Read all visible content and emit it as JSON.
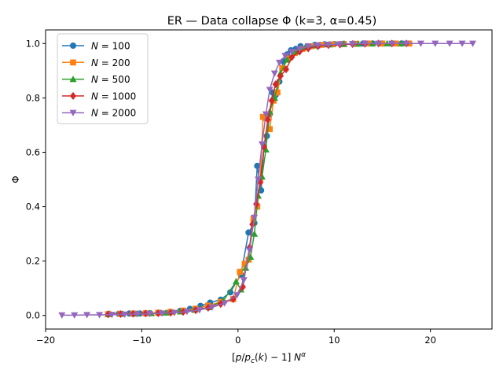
{
  "chart_data": {
    "type": "line",
    "title": "ER — Data collapse Φ  (k=3, α=0.45)",
    "xlabel": "[p/p_c(k) − 1] N^α",
    "ylabel": "Φ",
    "xlim": [
      -20.0,
      26.4
    ],
    "ylim": [
      -0.05,
      1.05
    ],
    "xticks": [
      "−20",
      "−10",
      "0",
      "10",
      "20"
    ],
    "xtick_values": [
      -20,
      -10,
      0,
      10,
      20
    ],
    "yticks": [
      "0.0",
      "0.2",
      "0.4",
      "0.6",
      "0.8",
      "1.0"
    ],
    "ytick_values": [
      0.0,
      0.2,
      0.4,
      0.6,
      0.8,
      1.0
    ],
    "grid": false,
    "legend_position": "top-left",
    "series": [
      {
        "name": "N = 100",
        "legend_base": "N",
        "legend_value": "100",
        "color": "#1f77b4",
        "marker": "circle",
        "x": [
          -13.4,
          -12.4,
          -11.3,
          -10.2,
          -9.2,
          -8.1,
          -7.1,
          -6.0,
          -5.0,
          -3.9,
          -2.9,
          -1.8,
          -0.8,
          0.3,
          1.1,
          1.7,
          2.0,
          2.4,
          2.7,
          3.0,
          3.3,
          3.6,
          3.9,
          4.3,
          4.7,
          5.1,
          5.5,
          6.0,
          6.5,
          7.2,
          8.0,
          9.0,
          10.0,
          11.0,
          12.0,
          13.0,
          14.0,
          15.0,
          16.0,
          17.0
        ],
        "y": [
          0.006,
          0.006,
          0.007,
          0.007,
          0.008,
          0.01,
          0.013,
          0.017,
          0.024,
          0.035,
          0.047,
          0.058,
          0.085,
          0.15,
          0.305,
          0.34,
          0.55,
          0.46,
          0.62,
          0.66,
          0.74,
          0.82,
          0.81,
          0.86,
          0.935,
          0.96,
          0.975,
          0.98,
          0.99,
          0.99,
          0.995,
          0.997,
          0.998,
          0.999,
          0.999,
          1.0,
          1.0,
          1.0,
          1.0,
          1.0
        ]
      },
      {
        "name": "N = 200",
        "legend_base": "N",
        "legend_value": "200",
        "color": "#ff7f0e",
        "marker": "square",
        "x": [
          -13.5,
          -12.2,
          -10.9,
          -9.6,
          -8.3,
          -7.0,
          -5.7,
          -4.4,
          -3.1,
          -1.8,
          -0.5,
          0.2,
          0.7,
          1.1,
          1.6,
          2.0,
          2.3,
          2.6,
          2.9,
          3.3,
          3.7,
          4.1,
          4.6,
          5.2,
          5.9,
          6.7,
          7.6,
          8.7,
          9.8,
          11.0,
          12.3,
          13.6,
          15.0,
          16.4,
          17.8
        ],
        "y": [
          0.005,
          0.006,
          0.007,
          0.008,
          0.01,
          0.013,
          0.018,
          0.025,
          0.036,
          0.05,
          0.06,
          0.16,
          0.19,
          0.205,
          0.355,
          0.4,
          0.495,
          0.73,
          0.725,
          0.685,
          0.79,
          0.82,
          0.91,
          0.945,
          0.965,
          0.98,
          0.99,
          0.995,
          0.997,
          0.998,
          0.999,
          1.0,
          1.0,
          1.0,
          1.0
        ]
      },
      {
        "name": "N = 500",
        "legend_base": "N",
        "legend_value": "500",
        "color": "#2ca02c",
        "marker": "triangle-up",
        "x": [
          -13.5,
          -12.0,
          -10.5,
          -9.0,
          -7.5,
          -6.0,
          -4.5,
          -3.0,
          -1.5,
          -0.2,
          0.3,
          0.8,
          1.3,
          1.7,
          2.1,
          2.5,
          2.9,
          3.3,
          3.8,
          4.4,
          5.1,
          6.0,
          7.0,
          8.2,
          9.5,
          11.0,
          12.5,
          14.0,
          15.5,
          17.0
        ],
        "y": [
          0.005,
          0.006,
          0.007,
          0.008,
          0.01,
          0.014,
          0.02,
          0.03,
          0.055,
          0.125,
          0.095,
          0.175,
          0.215,
          0.3,
          0.44,
          0.51,
          0.61,
          0.75,
          0.8,
          0.89,
          0.94,
          0.97,
          0.985,
          0.992,
          0.996,
          0.998,
          0.999,
          1.0,
          1.0,
          1.0
        ]
      },
      {
        "name": "N = 1000",
        "legend_base": "N",
        "legend_value": "1000",
        "color": "#d62728",
        "marker": "diamond",
        "x": [
          -13.5,
          -12.2,
          -10.9,
          -9.6,
          -8.3,
          -7.0,
          -5.7,
          -4.4,
          -3.1,
          -1.8,
          -0.5,
          0.5,
          1.2,
          1.5,
          1.9,
          2.3,
          2.7,
          3.1,
          3.5,
          3.9,
          4.4,
          5.0,
          5.6,
          6.4,
          7.3,
          8.3,
          9.4,
          10.6,
          11.9,
          13.2,
          14.6,
          16.0,
          17.5
        ],
        "y": [
          0.004,
          0.005,
          0.006,
          0.007,
          0.008,
          0.01,
          0.013,
          0.019,
          0.028,
          0.042,
          0.06,
          0.105,
          0.25,
          0.335,
          0.41,
          0.49,
          0.62,
          0.72,
          0.79,
          0.85,
          0.88,
          0.905,
          0.95,
          0.97,
          0.982,
          0.99,
          0.994,
          0.996,
          0.998,
          0.999,
          1.0,
          1.0,
          1.0
        ]
      },
      {
        "name": "N = 2000",
        "legend_base": "N",
        "legend_value": "2000",
        "color": "#9467bd",
        "marker": "triangle-down",
        "x": [
          -18.3,
          -17.0,
          -15.7,
          -14.4,
          -13.1,
          -11.8,
          -10.5,
          -9.2,
          -7.9,
          -6.6,
          -5.3,
          -4.0,
          -2.7,
          -1.4,
          -0.1,
          0.6,
          1.2,
          1.7,
          2.1,
          2.5,
          2.9,
          3.3,
          3.8,
          4.3,
          4.9,
          5.6,
          6.4,
          7.3,
          8.3,
          9.4,
          10.6,
          11.9,
          13.2,
          14.6,
          16.0,
          17.5,
          19.0,
          20.5,
          22.0,
          23.3,
          24.4
        ],
        "y": [
          0.001,
          0.001,
          0.002,
          0.002,
          0.003,
          0.004,
          0.005,
          0.006,
          0.008,
          0.01,
          0.014,
          0.02,
          0.03,
          0.045,
          0.075,
          0.13,
          0.24,
          0.36,
          0.5,
          0.63,
          0.74,
          0.83,
          0.89,
          0.93,
          0.955,
          0.97,
          0.98,
          0.99,
          0.994,
          0.996,
          0.998,
          0.999,
          1.0,
          1.0,
          1.0,
          1.0,
          1.0,
          1.0,
          1.0,
          1.0,
          1.0
        ]
      }
    ]
  }
}
